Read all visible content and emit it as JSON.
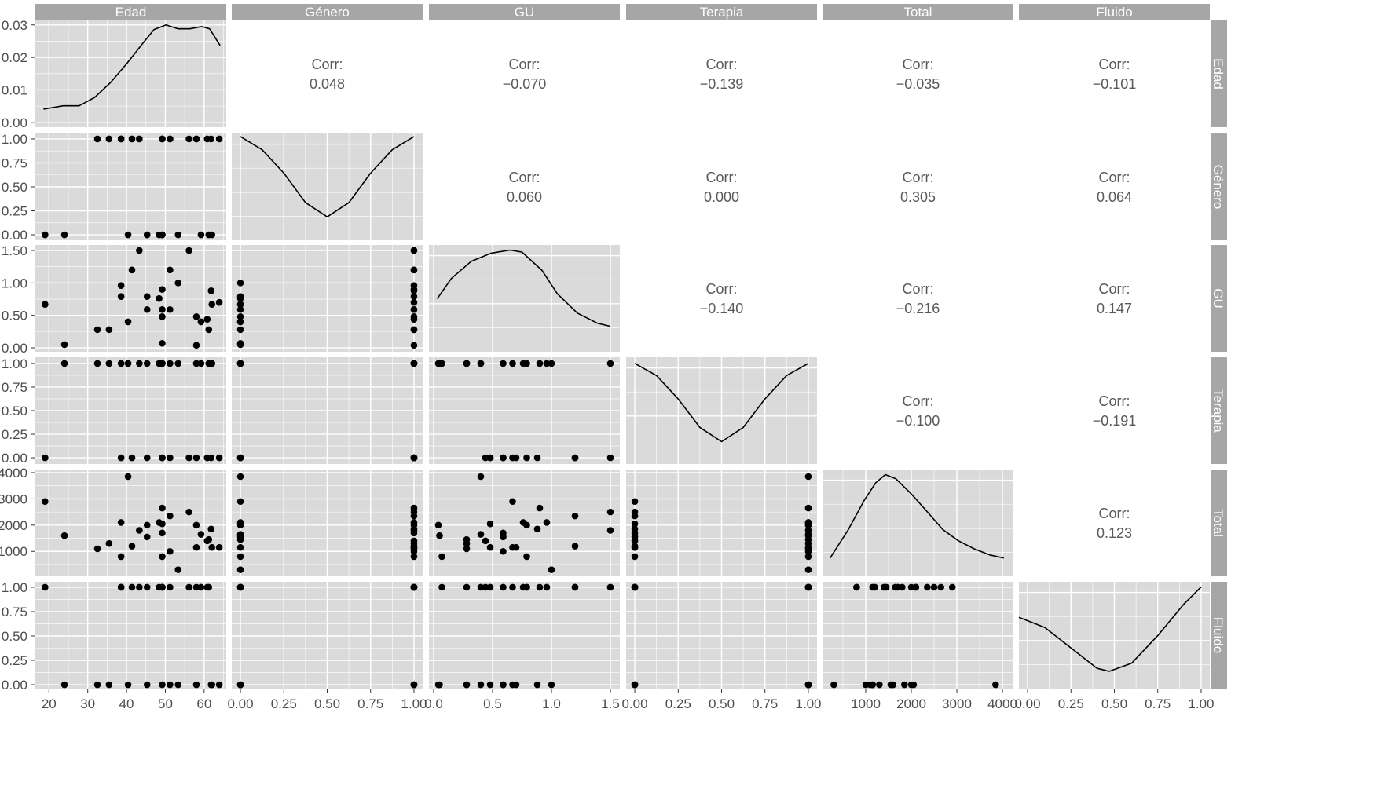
{
  "chart_data": {
    "type": "scatter-matrix",
    "title": "",
    "variables": [
      "Edad",
      "Género",
      "GU",
      "Terapia",
      "Total",
      "Fluido"
    ],
    "observations_columns": [
      "Edad",
      "Género",
      "GU",
      "Terapia",
      "Total",
      "Fluido"
    ],
    "observations": [
      [
        19,
        0,
        0.67,
        0,
        2900,
        1
      ],
      [
        24,
        0,
        0.05,
        1,
        1600,
        0
      ],
      [
        32.5,
        1,
        0.28,
        1,
        1100,
        0
      ],
      [
        35.5,
        1,
        0.28,
        1,
        1300,
        0
      ],
      [
        38.6,
        1,
        0.96,
        1,
        2100,
        1
      ],
      [
        38.6,
        1,
        0.79,
        0,
        800,
        1
      ],
      [
        40.4,
        0,
        0.4,
        1,
        3850,
        0
      ],
      [
        41.4,
        1,
        1.2,
        0,
        1200,
        1
      ],
      [
        43.3,
        1,
        1.5,
        1,
        1800,
        1
      ],
      [
        45.3,
        0,
        0.79,
        1,
        2000,
        1
      ],
      [
        45.3,
        0,
        0.59,
        0,
        1550,
        0
      ],
      [
        48.4,
        0,
        0.76,
        1,
        2100,
        1
      ],
      [
        49.2,
        1,
        0.9,
        1,
        2650,
        1
      ],
      [
        49.2,
        0,
        0.48,
        0,
        2050,
        0
      ],
      [
        49.2,
        1,
        0.59,
        0,
        1700,
        1
      ],
      [
        49.2,
        0,
        0.07,
        1,
        800,
        1
      ],
      [
        51.2,
        1,
        1.2,
        0,
        2350,
        1
      ],
      [
        51.2,
        1,
        0.59,
        1,
        1000,
        0
      ],
      [
        53.3,
        0,
        1.0,
        1,
        300,
        0
      ],
      [
        56.1,
        1,
        1.5,
        0,
        2500,
        1
      ],
      [
        58.0,
        1,
        0.48,
        0,
        1150,
        1
      ],
      [
        58.0,
        1,
        0.04,
        1,
        2000,
        0
      ],
      [
        59.2,
        0,
        0.4,
        1,
        1650,
        1
      ],
      [
        60.8,
        1,
        0.44,
        0,
        1400,
        1
      ],
      [
        61.2,
        0,
        0.28,
        1,
        1450,
        1
      ],
      [
        61.8,
        1,
        0.88,
        0,
        1850,
        0
      ],
      [
        62.0,
        0,
        0.67,
        1,
        1150,
        0
      ],
      [
        63.9,
        1,
        0.7,
        0,
        1150,
        0
      ]
    ],
    "x_axes": [
      {
        "range": [
          16.5,
          65.7
        ],
        "ticks": [
          20,
          30,
          40,
          50,
          60
        ],
        "tick_labels": [
          "20",
          "30",
          "40",
          "50",
          "60"
        ]
      },
      {
        "range": [
          -0.05,
          1.05
        ],
        "ticks": [
          0,
          0.25,
          0.5,
          0.75,
          1
        ],
        "tick_labels": [
          "0.00",
          "0.25",
          "0.50",
          "0.75",
          "1.00"
        ]
      },
      {
        "range": [
          -0.04,
          1.58
        ],
        "ticks": [
          0,
          0.5,
          1,
          1.5
        ],
        "tick_labels": [
          "0.0",
          "0.5",
          "1.0",
          "1.5"
        ]
      },
      {
        "range": [
          -0.05,
          1.05
        ],
        "ticks": [
          0,
          0.25,
          0.5,
          0.75,
          1
        ],
        "tick_labels": [
          "0.00",
          "0.25",
          "0.50",
          "0.75",
          "1.00"
        ]
      },
      {
        "range": [
          52,
          4241
        ],
        "ticks": [
          1000,
          2000,
          3000,
          4000
        ],
        "tick_labels": [
          "1000",
          "2000",
          "3000",
          "4000"
        ]
      },
      {
        "range": [
          -0.05,
          1.05
        ],
        "ticks": [
          0,
          0.25,
          0.5,
          0.75,
          1
        ],
        "tick_labels": [
          "0.00",
          "0.25",
          "0.50",
          "0.75",
          "1.00"
        ]
      }
    ],
    "y_axes": [
      {
        "range": [
          -0.0015,
          0.0314
        ],
        "ticks": [
          0,
          0.01,
          0.02,
          0.03
        ],
        "tick_labels": [
          "0.00",
          "0.01",
          "0.02",
          "0.03"
        ]
      },
      {
        "range": [
          -0.057,
          1.057
        ],
        "ticks": [
          0,
          0.25,
          0.5,
          0.75,
          1
        ],
        "tick_labels": [
          "0.00",
          "0.25",
          "0.50",
          "0.75",
          "1.00"
        ]
      },
      {
        "range": [
          -0.06,
          1.585
        ],
        "ticks": [
          0,
          0.5,
          1,
          1.5
        ],
        "tick_labels": [
          "0.00",
          "0.50",
          "1.00",
          "1.50"
        ]
      },
      {
        "range": [
          -0.066,
          1.066
        ],
        "ticks": [
          0,
          0.25,
          0.5,
          0.75,
          1
        ],
        "tick_labels": [
          "0.00",
          "0.25",
          "0.50",
          "0.75",
          "1.00"
        ]
      },
      {
        "range": [
          50,
          4119
        ],
        "ticks": [
          1000,
          2000,
          3000,
          4000
        ],
        "tick_labels": [
          "1000",
          "2000",
          "3000",
          "4000"
        ]
      },
      {
        "range": [
          -0.04,
          1.056
        ],
        "ticks": [
          0,
          0.25,
          0.5,
          0.75,
          1
        ],
        "tick_labels": [
          "0.00",
          "0.25",
          "0.50",
          "0.75",
          "1.00"
        ]
      }
    ],
    "densities": [
      {
        "x": [
          18.6,
          23.7,
          27.8,
          31.8,
          35.9,
          40,
          44.1,
          47.1,
          50.2,
          53.3,
          56.3,
          59.4,
          61.4,
          64.1
        ],
        "y": [
          0.0041,
          0.0051,
          0.0051,
          0.0077,
          0.0123,
          0.018,
          0.0242,
          0.0286,
          0.03,
          0.0288,
          0.0288,
          0.0295,
          0.0288,
          0.0237
        ],
        "ylim": [
          -0.0015,
          0.0314
        ]
      },
      {
        "x": [
          0,
          0.125,
          0.25,
          0.375,
          0.5,
          0.625,
          0.75,
          0.875,
          1
        ],
        "y": [
          1.02,
          0.89,
          0.66,
          0.37,
          0.23,
          0.37,
          0.66,
          0.89,
          1.02
        ],
        "ylim": [
          0,
          1.05
        ]
      },
      {
        "x": [
          0.03,
          0.15,
          0.32,
          0.49,
          0.65,
          0.75,
          0.92,
          1.05,
          1.22,
          1.39,
          1.5
        ],
        "y": [
          0.52,
          0.72,
          0.89,
          0.97,
          1.0,
          0.98,
          0.8,
          0.57,
          0.38,
          0.28,
          0.25
        ],
        "ylim": [
          0,
          1.05
        ]
      },
      {
        "x": [
          0,
          0.125,
          0.25,
          0.375,
          0.5,
          0.625,
          0.75,
          0.875,
          1
        ],
        "y": [
          0.99,
          0.87,
          0.64,
          0.36,
          0.22,
          0.36,
          0.64,
          0.87,
          0.99
        ],
        "ylim": [
          0,
          1.05
        ]
      },
      {
        "x": [
          220,
          620,
          970,
          1220,
          1430,
          1660,
          2000,
          2340,
          2690,
          3030,
          3380,
          3720,
          4030
        ],
        "y": [
          0.18,
          0.46,
          0.75,
          0.92,
          1.0,
          0.96,
          0.81,
          0.64,
          0.46,
          0.35,
          0.27,
          0.21,
          0.18
        ],
        "ylim": [
          0,
          1.05
        ]
      },
      {
        "x": [
          -0.05,
          0.1,
          0.25,
          0.4,
          0.47,
          0.6,
          0.75,
          0.9,
          1.0
        ],
        "y": [
          0.7,
          0.6,
          0.4,
          0.2,
          0.17,
          0.25,
          0.52,
          0.83,
          1.0
        ],
        "ylim": [
          0,
          1.05
        ]
      }
    ],
    "corr_label": "Corr:",
    "correlations": [
      {
        "row": 0,
        "col": 1,
        "value": "0.048"
      },
      {
        "row": 0,
        "col": 2,
        "value": "−0.070"
      },
      {
        "row": 0,
        "col": 3,
        "value": "−0.139"
      },
      {
        "row": 0,
        "col": 4,
        "value": "−0.035"
      },
      {
        "row": 0,
        "col": 5,
        "value": "−0.101"
      },
      {
        "row": 1,
        "col": 2,
        "value": "0.060"
      },
      {
        "row": 1,
        "col": 3,
        "value": "0.000"
      },
      {
        "row": 1,
        "col": 4,
        "value": "0.305"
      },
      {
        "row": 1,
        "col": 5,
        "value": "0.064"
      },
      {
        "row": 2,
        "col": 3,
        "value": "−0.140"
      },
      {
        "row": 2,
        "col": 4,
        "value": "−0.216"
      },
      {
        "row": 2,
        "col": 5,
        "value": "0.147"
      },
      {
        "row": 3,
        "col": 4,
        "value": "−0.100"
      },
      {
        "row": 3,
        "col": 5,
        "value": "−0.191"
      },
      {
        "row": 4,
        "col": 5,
        "value": "0.123"
      }
    ],
    "colors": {
      "panel": "#dadada",
      "strip": "#a6a6a6",
      "grid": "#ffffff",
      "point": "#000000",
      "text": "#4d4d4d"
    }
  }
}
